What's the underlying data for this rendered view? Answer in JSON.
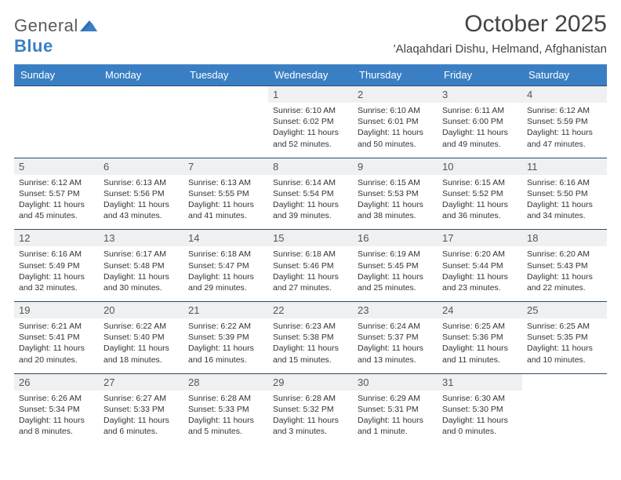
{
  "brand": {
    "general": "General",
    "blue": "Blue"
  },
  "title": "October 2025",
  "location": "'Alaqahdari Dishu, Helmand, Afghanistan",
  "colors": {
    "header_bg": "#3a7fc4",
    "header_text": "#ffffff",
    "daynum_bg": "#eff0f1",
    "border": "#2a4a6a",
    "text": "#333333"
  },
  "days_of_week": [
    "Sunday",
    "Monday",
    "Tuesday",
    "Wednesday",
    "Thursday",
    "Friday",
    "Saturday"
  ],
  "weeks": [
    [
      null,
      null,
      null,
      {
        "n": "1",
        "sr": "6:10 AM",
        "ss": "6:02 PM",
        "dl": "11 hours and 52 minutes."
      },
      {
        "n": "2",
        "sr": "6:10 AM",
        "ss": "6:01 PM",
        "dl": "11 hours and 50 minutes."
      },
      {
        "n": "3",
        "sr": "6:11 AM",
        "ss": "6:00 PM",
        "dl": "11 hours and 49 minutes."
      },
      {
        "n": "4",
        "sr": "6:12 AM",
        "ss": "5:59 PM",
        "dl": "11 hours and 47 minutes."
      }
    ],
    [
      {
        "n": "5",
        "sr": "6:12 AM",
        "ss": "5:57 PM",
        "dl": "11 hours and 45 minutes."
      },
      {
        "n": "6",
        "sr": "6:13 AM",
        "ss": "5:56 PM",
        "dl": "11 hours and 43 minutes."
      },
      {
        "n": "7",
        "sr": "6:13 AM",
        "ss": "5:55 PM",
        "dl": "11 hours and 41 minutes."
      },
      {
        "n": "8",
        "sr": "6:14 AM",
        "ss": "5:54 PM",
        "dl": "11 hours and 39 minutes."
      },
      {
        "n": "9",
        "sr": "6:15 AM",
        "ss": "5:53 PM",
        "dl": "11 hours and 38 minutes."
      },
      {
        "n": "10",
        "sr": "6:15 AM",
        "ss": "5:52 PM",
        "dl": "11 hours and 36 minutes."
      },
      {
        "n": "11",
        "sr": "6:16 AM",
        "ss": "5:50 PM",
        "dl": "11 hours and 34 minutes."
      }
    ],
    [
      {
        "n": "12",
        "sr": "6:16 AM",
        "ss": "5:49 PM",
        "dl": "11 hours and 32 minutes."
      },
      {
        "n": "13",
        "sr": "6:17 AM",
        "ss": "5:48 PM",
        "dl": "11 hours and 30 minutes."
      },
      {
        "n": "14",
        "sr": "6:18 AM",
        "ss": "5:47 PM",
        "dl": "11 hours and 29 minutes."
      },
      {
        "n": "15",
        "sr": "6:18 AM",
        "ss": "5:46 PM",
        "dl": "11 hours and 27 minutes."
      },
      {
        "n": "16",
        "sr": "6:19 AM",
        "ss": "5:45 PM",
        "dl": "11 hours and 25 minutes."
      },
      {
        "n": "17",
        "sr": "6:20 AM",
        "ss": "5:44 PM",
        "dl": "11 hours and 23 minutes."
      },
      {
        "n": "18",
        "sr": "6:20 AM",
        "ss": "5:43 PM",
        "dl": "11 hours and 22 minutes."
      }
    ],
    [
      {
        "n": "19",
        "sr": "6:21 AM",
        "ss": "5:41 PM",
        "dl": "11 hours and 20 minutes."
      },
      {
        "n": "20",
        "sr": "6:22 AM",
        "ss": "5:40 PM",
        "dl": "11 hours and 18 minutes."
      },
      {
        "n": "21",
        "sr": "6:22 AM",
        "ss": "5:39 PM",
        "dl": "11 hours and 16 minutes."
      },
      {
        "n": "22",
        "sr": "6:23 AM",
        "ss": "5:38 PM",
        "dl": "11 hours and 15 minutes."
      },
      {
        "n": "23",
        "sr": "6:24 AM",
        "ss": "5:37 PM",
        "dl": "11 hours and 13 minutes."
      },
      {
        "n": "24",
        "sr": "6:25 AM",
        "ss": "5:36 PM",
        "dl": "11 hours and 11 minutes."
      },
      {
        "n": "25",
        "sr": "6:25 AM",
        "ss": "5:35 PM",
        "dl": "11 hours and 10 minutes."
      }
    ],
    [
      {
        "n": "26",
        "sr": "6:26 AM",
        "ss": "5:34 PM",
        "dl": "11 hours and 8 minutes."
      },
      {
        "n": "27",
        "sr": "6:27 AM",
        "ss": "5:33 PM",
        "dl": "11 hours and 6 minutes."
      },
      {
        "n": "28",
        "sr": "6:28 AM",
        "ss": "5:33 PM",
        "dl": "11 hours and 5 minutes."
      },
      {
        "n": "29",
        "sr": "6:28 AM",
        "ss": "5:32 PM",
        "dl": "11 hours and 3 minutes."
      },
      {
        "n": "30",
        "sr": "6:29 AM",
        "ss": "5:31 PM",
        "dl": "11 hours and 1 minute."
      },
      {
        "n": "31",
        "sr": "6:30 AM",
        "ss": "5:30 PM",
        "dl": "11 hours and 0 minutes."
      },
      null
    ]
  ],
  "labels": {
    "sunrise": "Sunrise:",
    "sunset": "Sunset:",
    "daylight": "Daylight:"
  }
}
